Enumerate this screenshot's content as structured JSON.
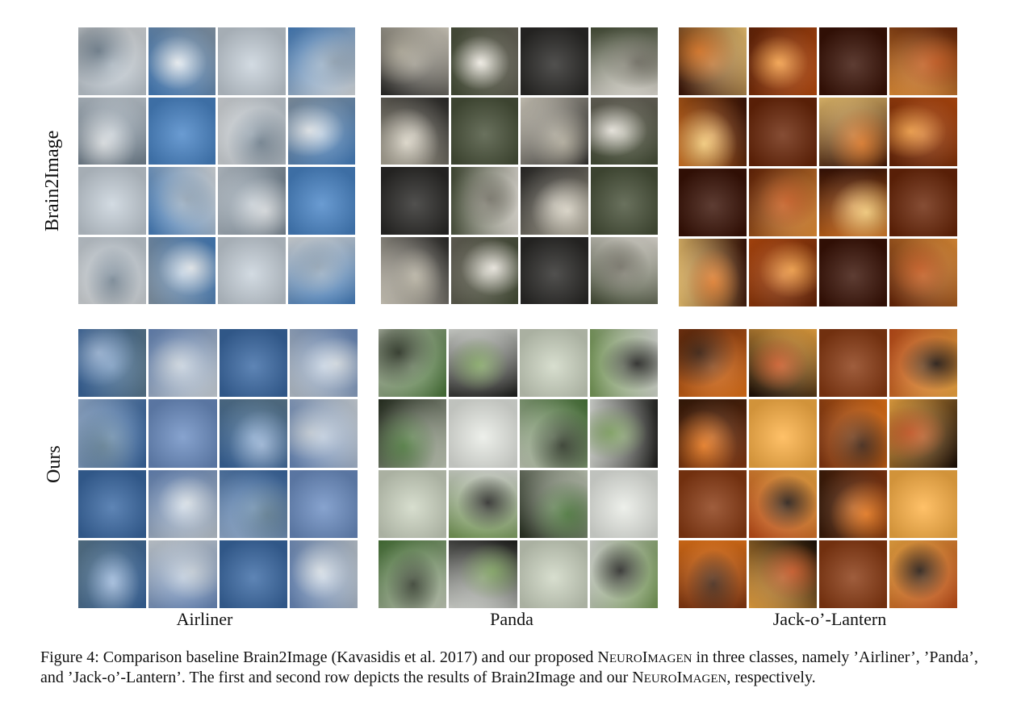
{
  "rows": [
    {
      "label": "Brain2Image"
    },
    {
      "label": "Ours"
    }
  ],
  "columns": [
    {
      "label": "Airliner"
    },
    {
      "label": "Panda"
    },
    {
      "label": "Jack-o’-Lantern"
    }
  ],
  "caption": {
    "figure_label": "Figure 4:",
    "before": " Comparison baseline Brain2Image (Kavasidis et al. 2017) and our proposed ",
    "model_name": "NeuroImagen",
    "after": " in three classes, namely ’Airliner’, ’Panda’, and ’Jack-o’-Lantern’. The first and second row depicts the results of Brain2Image and our ",
    "model_name_2": "NeuroImagen",
    "end": ", respectively."
  },
  "palettes": {
    "airliner_baseline": [
      "#c9d3dc",
      "#8fa2b4",
      "#dfe3e6",
      "#4a86c8",
      "#6e7f8e",
      "#e6ebef"
    ],
    "airliner_ours": [
      "#6d8fc4",
      "#9db9dc",
      "#c7d1db",
      "#3b6aa5",
      "#d9e1e8",
      "#5f7f96"
    ],
    "panda_baseline": [
      "#f1ede4",
      "#2b2a28",
      "#6d6a5e",
      "#e5dfd0",
      "#49523a",
      "#b3ad9c"
    ],
    "panda_ours": [
      "#4b7a3a",
      "#e9ece6",
      "#2a3323",
      "#7da25c",
      "#cfd7c4",
      "#1f1f1d"
    ],
    "lantern_baseline": [
      "#e0751f",
      "#f59b3d",
      "#3a1206",
      "#c24f10",
      "#ffd27a",
      "#6b2608"
    ],
    "lantern_ours": [
      "#1b0e06",
      "#f07a1a",
      "#ffb347",
      "#3b1c0a",
      "#c9501a",
      "#8a3a12"
    ]
  }
}
